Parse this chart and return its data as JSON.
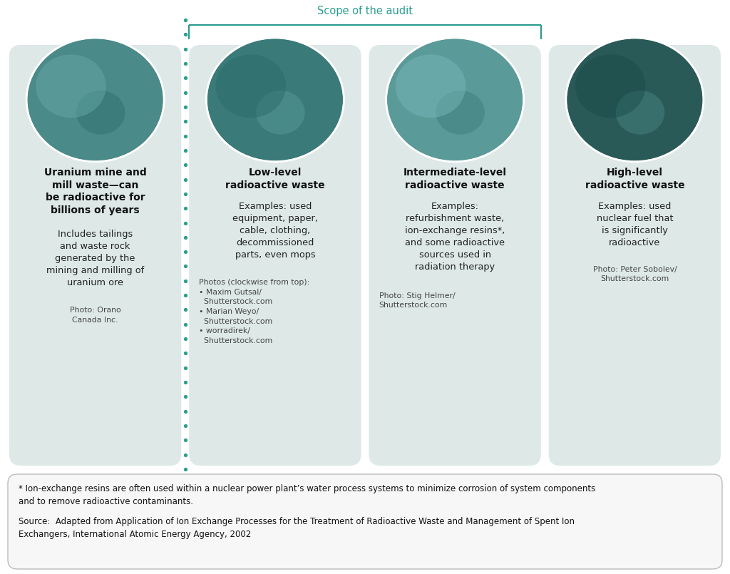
{
  "background_color": "#ffffff",
  "card_bg_color": "#dde8e7",
  "scope_color": "#2a9d8f",
  "dotted_line_color": "#2a9d8f",
  "title_color": "#111111",
  "body_color": "#222222",
  "photo_credit_color": "#444444",
  "footer_bg": "#f7f7f7",
  "footer_border": "#bbbbbb",
  "scope_label": "Scope of the audit",
  "cards": [
    {
      "title": "Uranium mine and\nmill waste—can\nbe radioactive for\nbillions of years",
      "body": "Includes tailings\nand waste rock\ngenerated by the\nmining and milling of\nuranium ore",
      "photo_credit": "Photo: Orano\nCanada Inc.",
      "photo_align": "center",
      "in_scope": false,
      "image_colors": [
        "#4a8a88",
        "#2d6b69",
        "#6aadaa",
        "#3d7e7c"
      ]
    },
    {
      "title": "Low-level\nradioactive waste",
      "body": "Examples: used\nequipment, paper,\ncable, clothing,\ndecommissioned\nparts, even mops",
      "photo_credit": "Photos (clockwise from top):\n• Maxim Gutsal/\n  Shutterstock.com\n• Marian Weyo/\n  Shutterstock.com\n• worradirek/\n  Shutterstock.com",
      "photo_align": "left",
      "in_scope": true,
      "image_colors": [
        "#3a7a78",
        "#5a9e9c",
        "#2a6a68",
        "#7ababc"
      ]
    },
    {
      "title": "Intermediate-level\nradioactive waste",
      "body": "Examples:\nrefurbishment waste,\nion-exchange resins*,\nand some radioactive\nsources used in\nradiation therapy",
      "photo_credit": "Photo: Stig Helmer/\nShutterstock.com",
      "photo_align": "left",
      "in_scope": true,
      "image_colors": [
        "#5a9a98",
        "#3a7a78",
        "#7ababc",
        "#2a6060"
      ]
    },
    {
      "title": "High-level\nradioactive waste",
      "body": "Examples: used\nnuclear fuel that\nis significantly\nradioactive",
      "photo_credit": "Photo: Peter Sobolev/\nShutterstock.com",
      "photo_align": "center",
      "in_scope": false,
      "image_colors": [
        "#2a5a58",
        "#4a8a88",
        "#1a4a48",
        "#6aadaa"
      ]
    }
  ],
  "footnote_line1": "* Ion-exchange resins are often used within a nuclear power plant’s water process systems to minimize corrosion of system components",
  "footnote_line2": "and to remove radioactive contaminants.",
  "source_line1": "Source:  Adapted from Application of Ion Exchange Processes for the Treatment of Radioactive Waste and Management of Spent Ion",
  "source_line2": "Exchangers, International Atomic Energy Agency, 2002"
}
